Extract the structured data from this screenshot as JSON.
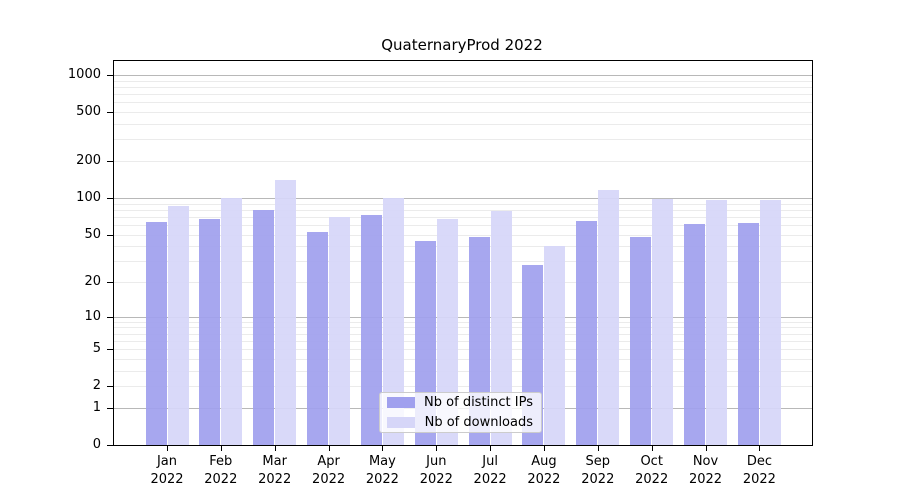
{
  "chart_data": {
    "type": "bar",
    "title": "QuaternaryProd 2022",
    "categories": [
      "Jan",
      "Feb",
      "Mar",
      "Apr",
      "May",
      "Jun",
      "Jul",
      "Aug",
      "Sep",
      "Oct",
      "Nov",
      "Dec"
    ],
    "category_year": "2022",
    "series": [
      {
        "name": "Nb of distinct IPs",
        "color": "#a0a0ee",
        "values": [
          64,
          67,
          79,
          52,
          72,
          44,
          48,
          28,
          65,
          48,
          61,
          62
        ]
      },
      {
        "name": "Nb of downloads",
        "color": "#d6d6f8",
        "values": [
          86,
          100,
          140,
          70,
          100,
          67,
          78,
          40,
          117,
          98,
          97,
          97
        ]
      }
    ],
    "y_ticks": [
      0,
      1,
      2,
      5,
      10,
      20,
      50,
      100,
      200,
      500,
      1000
    ],
    "y_scale": "log10(1+x)",
    "ylim": [
      0,
      1300
    ],
    "grid": "horizontal major at powers of 10, faint log minors",
    "legend_position": "lower center inside plot"
  }
}
